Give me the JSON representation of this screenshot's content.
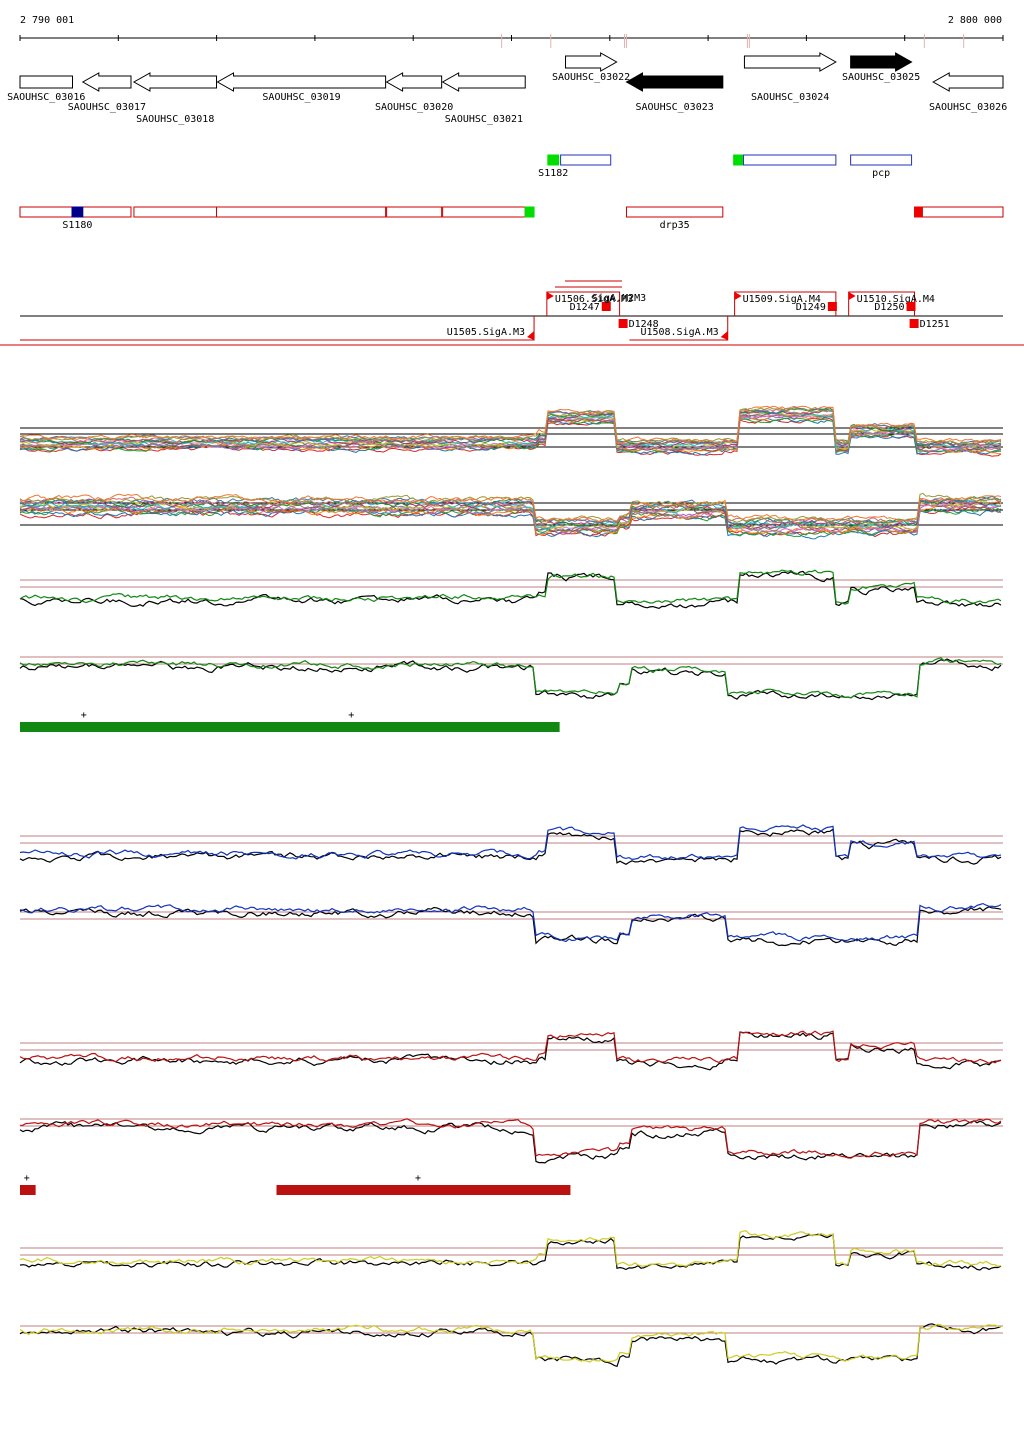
{
  "chart_data": {
    "type": "line",
    "title": "",
    "axis": {
      "start_label": "2 790 001",
      "end_label": "2 800 000",
      "start": 2790001,
      "end": 2800000
    },
    "genes_forward": [
      {
        "name": "SAOUHSC_03016",
        "start": 2790001,
        "end": 2790535,
        "strand": "+",
        "color": "white"
      },
      {
        "name": "SAOUHSC_03022",
        "start": 2795550,
        "end": 2796070,
        "strand": "+",
        "color": "white"
      },
      {
        "name": "SAOUHSC_03024",
        "start": 2797370,
        "end": 2798300,
        "strand": "+",
        "color": "white"
      },
      {
        "name": "SAOUHSC_03025",
        "start": 2798450,
        "end": 2799070,
        "strand": "+",
        "color": "black"
      }
    ],
    "genes_reverse": [
      {
        "name": "SAOUHSC_03017",
        "start": 2790640,
        "end": 2791130,
        "strand": "-",
        "color": "white"
      },
      {
        "name": "SAOUHSC_03018",
        "start": 2791160,
        "end": 2792000,
        "strand": "-",
        "color": "white"
      },
      {
        "name": "SAOUHSC_03019",
        "start": 2792010,
        "end": 2793720,
        "strand": "-",
        "color": "white"
      },
      {
        "name": "SAOUHSC_03020",
        "start": 2793730,
        "end": 2794290,
        "strand": "-",
        "color": "white"
      },
      {
        "name": "SAOUHSC_03021",
        "start": 2794300,
        "end": 2795140,
        "strand": "-",
        "color": "white"
      },
      {
        "name": "SAOUHSC_03023",
        "start": 2796170,
        "end": 2797150,
        "strand": "-",
        "color": "black"
      },
      {
        "name": "SAOUHSC_03026",
        "start": 2799290,
        "end": 2800000,
        "strand": "-",
        "color": "white"
      }
    ],
    "features_plus": [
      {
        "name": "S1182",
        "start": 2795370,
        "end": 2795480,
        "color": "#00dd00"
      },
      {
        "name": "",
        "start": 2795500,
        "end": 2796010,
        "color": "#2233bb"
      },
      {
        "name": "",
        "start": 2797260,
        "end": 2797350,
        "color": "#00dd00"
      },
      {
        "name": "",
        "start": 2797360,
        "end": 2798300,
        "color": "#2233bb"
      },
      {
        "name": "pcp",
        "start": 2798450,
        "end": 2799070,
        "color": "#2233bb"
      }
    ],
    "features_minus": [
      {
        "name": "",
        "start": 2790001,
        "end": 2791130,
        "color": "#cc0000"
      },
      {
        "name": "S1180",
        "start": 2790530,
        "end": 2790640,
        "color": "#000088"
      },
      {
        "name": "",
        "start": 2791160,
        "end": 2792000,
        "color": "#cc0000"
      },
      {
        "name": "",
        "start": 2792000,
        "end": 2793720,
        "color": "#cc0000"
      },
      {
        "name": "",
        "start": 2793730,
        "end": 2794290,
        "color": "#cc0000"
      },
      {
        "name": "",
        "start": 2794300,
        "end": 2795140,
        "color": "#cc0000"
      },
      {
        "name": "",
        "start": 2795140,
        "end": 2795230,
        "color": "#00dd00"
      },
      {
        "name": "drp35",
        "start": 2796170,
        "end": 2797150,
        "color": "#cc0000"
      },
      {
        "name": "",
        "start": 2799100,
        "end": 2799180,
        "color": "#ee0000"
      },
      {
        "name": "",
        "start": 2799180,
        "end": 2800000,
        "color": "#cc0000"
      }
    ],
    "transcripts_plus": [
      {
        "name": "U1506.SigA.M3",
        "start": 2795360,
        "end": 2796100
      },
      {
        "name": "D1247",
        "start": 2795900,
        "end": 2796000
      },
      {
        "name": "U1509.SigA.M4",
        "start": 2797270,
        "end": 2798300
      },
      {
        "name": "D1249",
        "start": 2798200,
        "end": 2798300
      },
      {
        "name": "U1510.SigA.M4",
        "start": 2798430,
        "end": 2799100
      },
      {
        "name": "D1250",
        "start": 2799000,
        "end": 2799100
      }
    ],
    "transcripts_minus": [
      {
        "name": "U1505.SigA.M3",
        "start": 2790001,
        "end": 2795230
      },
      {
        "name": "D1248",
        "start": 2796090,
        "end": 2796200
      },
      {
        "name": "U1508.SigA.M3",
        "start": 2796200,
        "end": 2797200
      },
      {
        "name": "D1251",
        "start": 2799050,
        "end": 2799180
      }
    ],
    "transcripts_minus_fragment": "SigA.M2M3",
    "segments_green": [
      {
        "start": 2790001,
        "end": 2795490,
        "marks": [
          2790650,
          2793370
        ]
      }
    ],
    "segments_red": [
      {
        "start": 2790001,
        "end": 2790160,
        "marks": [
          2790070
        ]
      },
      {
        "start": 2792610,
        "end": 2795600,
        "marks": [
          2794050
        ]
      }
    ],
    "expression_steps": {
      "plus_strand": [
        {
          "from": 2790001,
          "level": 0.4
        },
        {
          "from": 2795250,
          "level": 0.55
        },
        {
          "from": 2795370,
          "level": 1.2
        },
        {
          "from": 2796050,
          "level": 0.3
        },
        {
          "from": 2797150,
          "level": 0.35
        },
        {
          "from": 2797300,
          "level": 1.3
        },
        {
          "from": 2798300,
          "level": 0.3
        },
        {
          "from": 2798450,
          "level": 0.8
        },
        {
          "from": 2799100,
          "level": 0.3
        }
      ],
      "minus_strand": [
        {
          "from": 2790001,
          "level": 0.8
        },
        {
          "from": 2795200,
          "level": 0.7
        },
        {
          "from": 2795230,
          "level": -0.2
        },
        {
          "from": 2796100,
          "level": 0.1
        },
        {
          "from": 2796200,
          "level": 0.6
        },
        {
          "from": 2797200,
          "level": -0.2
        },
        {
          "from": 2799150,
          "level": 0.9
        }
      ]
    },
    "series_colors": {
      "reference": "#000000",
      "green": "#118811",
      "blue": "#1133bb",
      "red": "#bb1111",
      "yellow": "#cccc22"
    }
  }
}
